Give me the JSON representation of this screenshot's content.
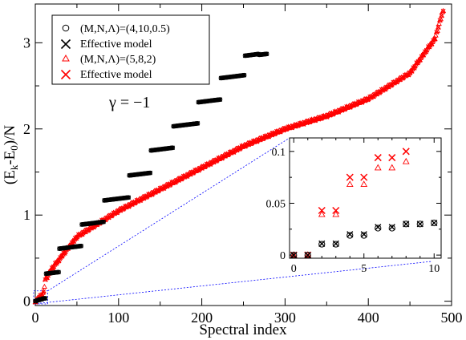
{
  "chart_data": {
    "type": "scatter",
    "xlabel": "Spectral index",
    "ylabel_main": "(E",
    "ylabel_sub1": "k",
    "ylabel_mid": "-E",
    "ylabel_sub2": "0",
    "ylabel_tail": ")/N",
    "annotation": "γ = −1",
    "xlim": [
      0,
      500
    ],
    "ylim": [
      -0.05,
      3.45
    ],
    "xticks": [
      "0",
      "100",
      "200",
      "300",
      "400",
      "500"
    ],
    "yticks": [
      "0",
      "1",
      "2",
      "3"
    ],
    "colors": {
      "black_series": "#000000",
      "red_series": "#ff0000",
      "zoom_lines": "#0000ff"
    },
    "legend": {
      "placement": "top-left",
      "entries": [
        {
          "label": "(M,N,Λ)=(4,10,0.5)",
          "marker": "circle",
          "color": "#000000"
        },
        {
          "label": "Effective model",
          "marker": "x",
          "color": "#000000"
        },
        {
          "label": "(M,N,Λ)=(5,8,2)",
          "marker": "triangle",
          "color": "#ff0000"
        },
        {
          "label": "Effective model",
          "marker": "x",
          "color": "#ff0000"
        }
      ]
    },
    "main_series": {
      "black_circles_levels": [
        {
          "x": [
            0,
            1
          ],
          "y": 0.0
        },
        {
          "x": [
            2,
            4
          ],
          "y": 0.01
        },
        {
          "x": [
            5,
            8
          ],
          "y": 0.02
        },
        {
          "x": [
            9,
            12
          ],
          "y": 0.03
        },
        {
          "x": [
            13,
            28
          ],
          "y": 0.32
        },
        {
          "x": [
            29,
            55
          ],
          "y": 0.61
        },
        {
          "x": [
            56,
            82
          ],
          "y": 0.89
        },
        {
          "x": [
            83,
            112
          ],
          "y": 1.17
        },
        {
          "x": [
            113,
            138
          ],
          "y": 1.46
        },
        {
          "x": [
            139,
            165
          ],
          "y": 1.75
        },
        {
          "x": [
            166,
            195
          ],
          "y": 2.03
        },
        {
          "x": [
            196,
            222
          ],
          "y": 2.31
        },
        {
          "x": [
            223,
            251
          ],
          "y": 2.59
        },
        {
          "x": [
            252,
            268
          ],
          "y": 2.85
        },
        {
          "x": [
            269,
            278
          ],
          "y": 2.86
        }
      ],
      "red_curve": [
        {
          "x": 0,
          "y": 0.0
        },
        {
          "x": 10,
          "y": 0.1
        },
        {
          "x": 12,
          "y": 0.25
        },
        {
          "x": 20,
          "y": 0.38
        },
        {
          "x": 50,
          "y": 0.75
        },
        {
          "x": 100,
          "y": 1.05
        },
        {
          "x": 150,
          "y": 1.3
        },
        {
          "x": 200,
          "y": 1.55
        },
        {
          "x": 250,
          "y": 1.8
        },
        {
          "x": 300,
          "y": 2.0
        },
        {
          "x": 350,
          "y": 2.15
        },
        {
          "x": 400,
          "y": 2.35
        },
        {
          "x": 450,
          "y": 2.65
        },
        {
          "x": 480,
          "y": 3.05
        },
        {
          "x": 490,
          "y": 3.38
        }
      ]
    },
    "inset": {
      "xlim": [
        -0.3,
        10.5
      ],
      "ylim": [
        -0.003,
        0.113
      ],
      "xticks": [
        "0",
        "5",
        "10"
      ],
      "yticks": [
        "0",
        "0.05",
        "0.1"
      ],
      "black_circles": [
        {
          "x": 0,
          "y": 0.0
        },
        {
          "x": 1,
          "y": 0.0
        },
        {
          "x": 2,
          "y": 0.0105
        },
        {
          "x": 3,
          "y": 0.0105
        },
        {
          "x": 4,
          "y": 0.019
        },
        {
          "x": 5,
          "y": 0.019
        },
        {
          "x": 6,
          "y": 0.026
        },
        {
          "x": 7,
          "y": 0.026
        },
        {
          "x": 8,
          "y": 0.03
        },
        {
          "x": 9,
          "y": 0.03
        },
        {
          "x": 10,
          "y": 0.031
        }
      ],
      "black_x": [
        {
          "x": 0,
          "y": 0.0
        },
        {
          "x": 1,
          "y": 0.0
        },
        {
          "x": 2,
          "y": 0.011
        },
        {
          "x": 3,
          "y": 0.011
        },
        {
          "x": 4,
          "y": 0.02
        },
        {
          "x": 5,
          "y": 0.02
        },
        {
          "x": 6,
          "y": 0.027
        },
        {
          "x": 7,
          "y": 0.027
        },
        {
          "x": 8,
          "y": 0.03
        },
        {
          "x": 9,
          "y": 0.03
        },
        {
          "x": 10,
          "y": 0.031
        }
      ],
      "red_triangles": [
        {
          "x": 0,
          "y": 0.0
        },
        {
          "x": 1,
          "y": 0.0
        },
        {
          "x": 2,
          "y": 0.039
        },
        {
          "x": 3,
          "y": 0.039
        },
        {
          "x": 4,
          "y": 0.068
        },
        {
          "x": 5,
          "y": 0.068
        },
        {
          "x": 6,
          "y": 0.084
        },
        {
          "x": 7,
          "y": 0.084
        },
        {
          "x": 8,
          "y": 0.09
        }
      ],
      "red_x": [
        {
          "x": 0,
          "y": 0.0
        },
        {
          "x": 1,
          "y": 0.0
        },
        {
          "x": 2,
          "y": 0.043
        },
        {
          "x": 3,
          "y": 0.043
        },
        {
          "x": 4,
          "y": 0.075
        },
        {
          "x": 5,
          "y": 0.075
        },
        {
          "x": 6,
          "y": 0.094
        },
        {
          "x": 7,
          "y": 0.094
        },
        {
          "x": 8,
          "y": 0.1
        }
      ]
    }
  }
}
